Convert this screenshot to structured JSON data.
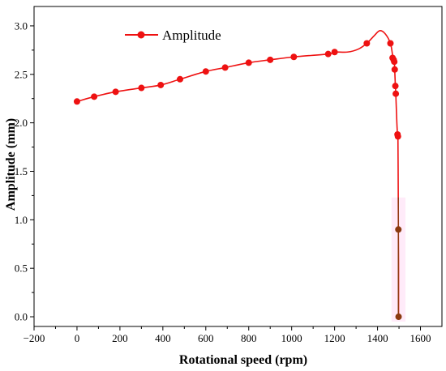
{
  "chart_data": {
    "type": "line",
    "xlabel": "Rotational speed (rpm)",
    "ylabel": "Amplitude (mm)",
    "xlim": [
      -200,
      1700
    ],
    "ylim": [
      -0.1,
      3.2
    ],
    "xticks": [
      -200,
      0,
      200,
      400,
      600,
      800,
      1000,
      1200,
      1400,
      1600
    ],
    "yticks": [
      0.0,
      0.5,
      1.0,
      1.5,
      2.0,
      2.5,
      3.0
    ],
    "ytick_labels": [
      "0.0",
      "0.5",
      "1.0",
      "1.5",
      "2.0",
      "2.5",
      "3.0"
    ],
    "legend_position": "top-left",
    "grid": false,
    "series": [
      {
        "name": "Amplitude",
        "color": "#ee1111",
        "curve": [
          [
            0,
            2.22
          ],
          [
            80,
            2.27
          ],
          [
            180,
            2.32
          ],
          [
            300,
            2.36
          ],
          [
            390,
            2.39
          ],
          [
            480,
            2.45
          ],
          [
            600,
            2.53
          ],
          [
            690,
            2.57
          ],
          [
            800,
            2.62
          ],
          [
            900,
            2.65
          ],
          [
            1010,
            2.68
          ],
          [
            1170,
            2.71
          ],
          [
            1200,
            2.73
          ],
          [
            1260,
            2.73
          ],
          [
            1310,
            2.76
          ],
          [
            1350,
            2.82
          ],
          [
            1385,
            2.9
          ],
          [
            1410,
            2.95
          ],
          [
            1435,
            2.92
          ],
          [
            1460,
            2.82
          ],
          [
            1470,
            2.7
          ],
          [
            1475,
            2.67
          ],
          [
            1478,
            2.64
          ],
          [
            1480,
            2.55
          ],
          [
            1483,
            2.38
          ],
          [
            1485,
            2.3
          ],
          [
            1490,
            2.0
          ],
          [
            1493,
            1.88
          ],
          [
            1495,
            1.86
          ],
          [
            1496,
            1.5
          ],
          [
            1497,
            1.0
          ],
          [
            1497,
            0.9
          ],
          [
            1498,
            0.5
          ],
          [
            1498,
            0.0
          ]
        ],
        "points": [
          [
            0,
            2.22
          ],
          [
            80,
            2.27
          ],
          [
            180,
            2.32
          ],
          [
            300,
            2.36
          ],
          [
            390,
            2.39
          ],
          [
            480,
            2.45
          ],
          [
            600,
            2.53
          ],
          [
            690,
            2.57
          ],
          [
            800,
            2.62
          ],
          [
            900,
            2.65
          ],
          [
            1010,
            2.68
          ],
          [
            1170,
            2.71
          ],
          [
            1200,
            2.73
          ],
          [
            1350,
            2.82
          ],
          [
            1460,
            2.82
          ],
          [
            1470,
            2.67
          ],
          [
            1475,
            2.65
          ],
          [
            1478,
            2.63
          ],
          [
            1480,
            2.55
          ],
          [
            1483,
            2.38
          ],
          [
            1485,
            2.3
          ],
          [
            1493,
            1.88
          ],
          [
            1495,
            1.86
          ]
        ]
      },
      {
        "color": "#8b3a10",
        "curve": [
          [
            1497,
            1.23
          ],
          [
            1497,
            0.0
          ]
        ],
        "points": [
          [
            1497,
            0.9
          ],
          [
            1498,
            0.0
          ]
        ]
      }
    ]
  }
}
